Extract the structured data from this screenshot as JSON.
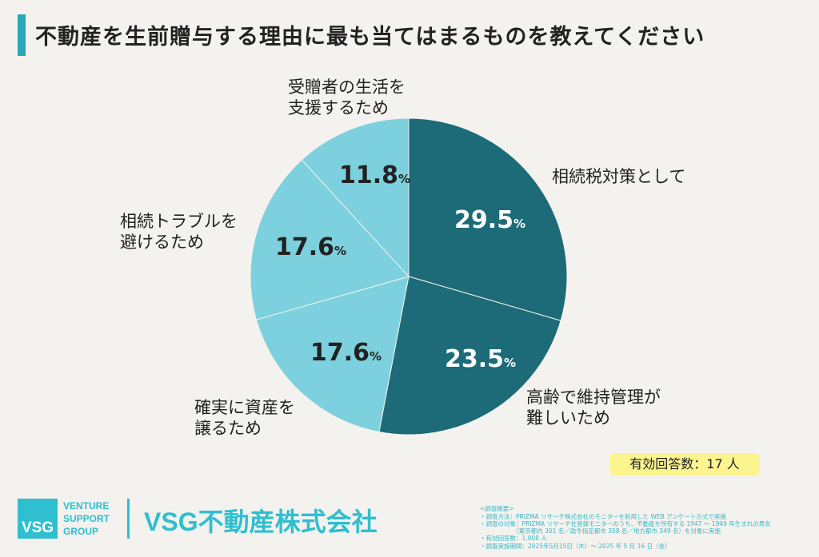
{
  "title": "不動産を生前贈与する理由に最も当てはまるものを教えてください",
  "chart_data": {
    "type": "pie",
    "title": "不動産を生前贈与する理由に最も当てはまるものを教えてください",
    "slices": [
      {
        "label": "相続税対策として",
        "value": 29.5,
        "display": "29.5",
        "color": "#1d6b78"
      },
      {
        "label": "高齢で維持管理が難しいため",
        "value": 23.5,
        "display": "23.5",
        "color": "#1d6b78"
      },
      {
        "label": "確実に資産を譲るため",
        "value": 17.6,
        "display": "17.6",
        "color": "#7dd0dd"
      },
      {
        "label": "相続トラブルを避けるため",
        "value": 17.6,
        "display": "17.6",
        "color": "#7dd0dd"
      },
      {
        "label": "受贈者の生活を支援するため",
        "value": 11.8,
        "display": "11.8",
        "color": "#7dd0dd"
      }
    ],
    "unit": "%"
  },
  "labels": {
    "l0": "相続税対策として",
    "l1a": "高齢で維持管理が",
    "l1b": "難しいため",
    "l2a": "確実に資産を",
    "l2b": "譲るため",
    "l3a": "相続トラブルを",
    "l3b": "避けるため",
    "l4a": "受贈者の生活を",
    "l4b": "支援するため"
  },
  "respondents": "有効回答数：17 人",
  "logo": {
    "mark": "VSG",
    "sub1": "VENTURE",
    "sub2": "SUPPORT",
    "sub3": "GROUP",
    "company": "VSG不動産株式会社"
  },
  "notes": [
    "<調査概要>",
    "・調査方法：PRIZMA リサーチ株式会社のモニターを利用した WEB アンケート方式で実施",
    "・調査の対象：PRIZMA リサーチ社登録モニターのうち、不動産を所有する 1947 ～ 1949 年生まれの男女",
    "　　　　　　（東京都内 301 名／政令指定都市 358 名／地方都市 349 名）を対象に実施",
    "・有効回答数：1,008 人",
    "・調査実施期間：2025年5月15日（木）～ 2025 年 5 月 16 日（金）"
  ]
}
